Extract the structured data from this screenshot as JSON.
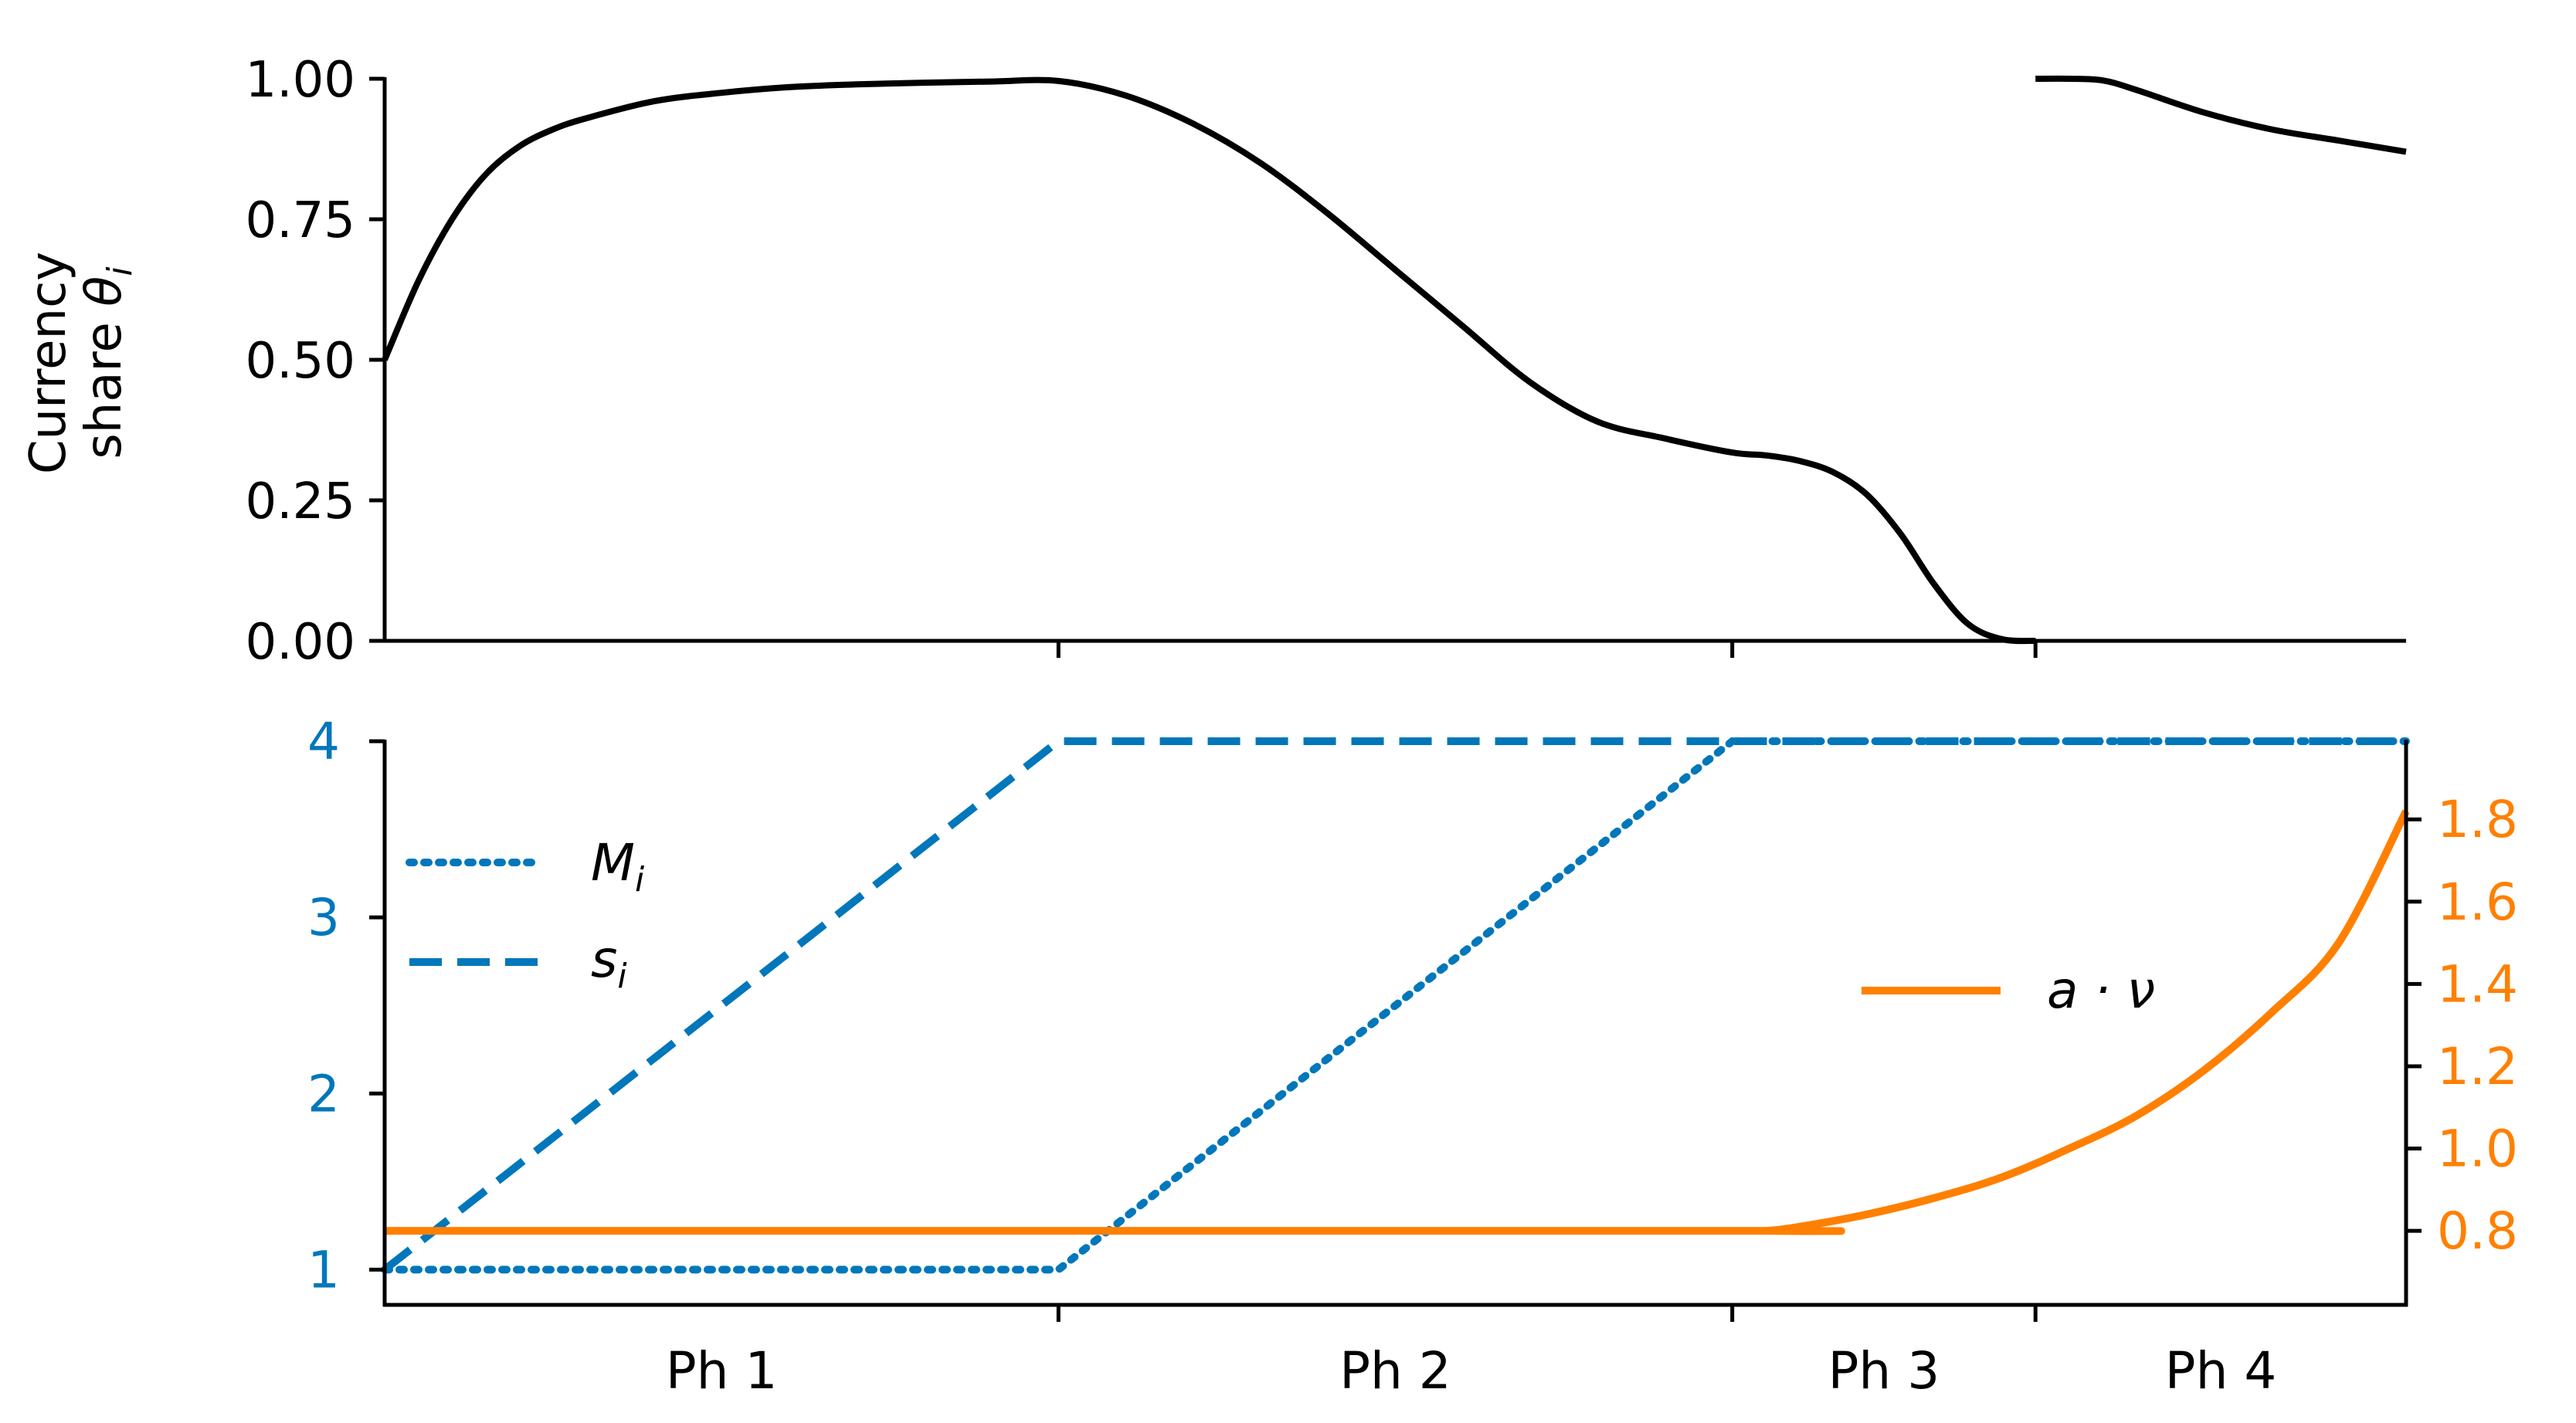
{
  "colors": {
    "theta": "#000000",
    "blue": "#0077bb",
    "orange": "#ff8000",
    "axis": "#000000"
  },
  "chart_data": [
    {
      "type": "line",
      "panel": "top",
      "ylabel_line1": "Currency",
      "ylabel_line2_prefix": "share ",
      "ylabel_symbol": "θ",
      "ylabel_subscript": "i",
      "xlim": [
        0,
        3
      ],
      "ylim": [
        0,
        1
      ],
      "yticks": [
        0,
        0.25,
        0.5,
        0.75,
        1
      ],
      "ytick_labels": [
        "0.00",
        "0.25",
        "0.50",
        "0.75",
        "1.00"
      ],
      "xticks": [
        1,
        2,
        2.45
      ],
      "series": [
        {
          "name": "theta_i segment 1",
          "x": [
            0,
            0.05,
            0.1,
            0.15,
            0.2,
            0.25,
            0.3,
            0.4,
            0.5,
            0.6,
            0.7,
            0.8,
            0.9,
            1.0,
            1.1,
            1.2,
            1.3,
            1.4,
            1.5,
            1.6,
            1.7,
            1.8,
            1.9,
            2.0,
            2.05,
            2.1,
            2.15,
            2.2,
            2.25,
            2.3,
            2.35,
            2.4,
            2.45
          ],
          "y": [
            0.5,
            0.64,
            0.75,
            0.83,
            0.88,
            0.91,
            0.93,
            0.96,
            0.975,
            0.985,
            0.99,
            0.993,
            0.995,
            0.996,
            0.97,
            0.92,
            0.85,
            0.76,
            0.66,
            0.56,
            0.46,
            0.39,
            0.36,
            0.335,
            0.33,
            0.32,
            0.3,
            0.26,
            0.19,
            0.1,
            0.03,
            0.003,
            0.0
          ]
        },
        {
          "name": "theta_i segment 2",
          "x": [
            2.45,
            2.5,
            2.55,
            2.6,
            2.7,
            2.8,
            2.9,
            3.0
          ],
          "y": [
            1.0,
            1.0,
            0.997,
            0.98,
            0.94,
            0.91,
            0.89,
            0.87
          ]
        }
      ]
    },
    {
      "type": "line",
      "panel": "bottom",
      "xlim": [
        0,
        3
      ],
      "ylim_left": [
        0.8,
        4
      ],
      "ylim_right": [
        0.62,
        1.99
      ],
      "yticks_left": [
        1,
        2,
        3,
        4
      ],
      "ytick_labels_left": [
        "1",
        "2",
        "3",
        "4"
      ],
      "yticks_right": [
        0.8,
        1.0,
        1.2,
        1.4,
        1.6,
        1.8
      ],
      "ytick_labels_right": [
        "0.8",
        "1.0",
        "1.2",
        "1.4",
        "1.6",
        "1.8"
      ],
      "xticks": [
        1,
        2,
        2.45
      ],
      "categories": [
        "Ph 1",
        "Ph 2",
        "Ph 3",
        "Ph 4"
      ],
      "category_positions": [
        0.5,
        1.5,
        2.225,
        2.725
      ],
      "series": [
        {
          "name": "M_i",
          "style": "dotted",
          "axis": "left",
          "x": [
            0,
            1,
            2,
            3
          ],
          "y": [
            1,
            1,
            4,
            4
          ]
        },
        {
          "name": "s_i",
          "style": "dashed",
          "axis": "left",
          "x": [
            0,
            1,
            2,
            3
          ],
          "y": [
            1,
            4,
            4,
            4
          ]
        },
        {
          "name": "a · ν",
          "style": "solid",
          "axis": "right",
          "x": [
            0,
            2.0,
            2.05,
            2.1,
            2.2,
            2.3,
            2.4,
            2.5,
            2.6,
            2.7,
            2.8,
            2.9,
            3.0
          ],
          "y": [
            0.8,
            0.8,
            0.8,
            0.81,
            0.84,
            0.88,
            0.93,
            1.0,
            1.08,
            1.19,
            1.33,
            1.5,
            1.82
          ]
        }
      ],
      "legend_left": [
        {
          "symbol": "M",
          "subscript": "i"
        },
        {
          "symbol": "s",
          "subscript": "i"
        }
      ],
      "legend_right": {
        "label": "a · ν"
      }
    }
  ]
}
